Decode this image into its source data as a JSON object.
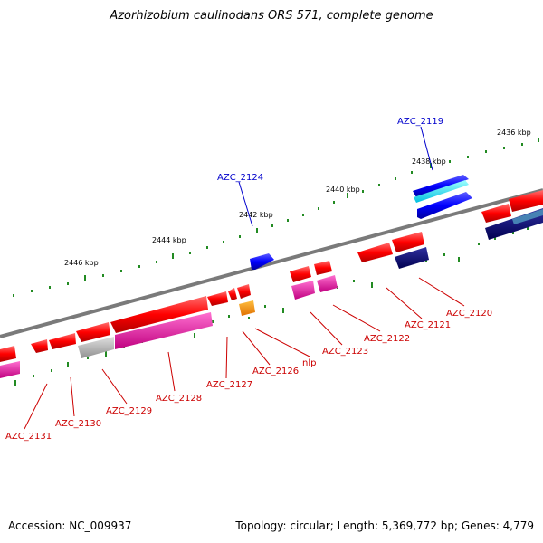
{
  "title": "Azorhizobium caulinodans ORS 571, complete genome",
  "footer": {
    "accession": "Accession: NC_009937",
    "summary": "Topology: circular; Length: 5,369,772 bp; Genes: 4,779"
  },
  "ticks": [
    "2436 kbp",
    "2438 kbp",
    "2440 kbp",
    "2442 kbp",
    "2444 kbp",
    "2446 kbp"
  ],
  "labels_top": [
    "AZC_2119",
    "AZC_2124"
  ],
  "labels_bottom": [
    "AZC_2120",
    "AZC_2121",
    "AZC_2122",
    "AZC_2123",
    "nlp",
    "AZC_2126",
    "AZC_2127",
    "AZC_2128",
    "AZC_2129",
    "AZC_2130",
    "AZC_2131"
  ],
  "colors": {
    "forward_label": "#0000cc",
    "reverse_label": "#cc0000",
    "tick": "#228b22",
    "backbone": "#808080"
  }
}
